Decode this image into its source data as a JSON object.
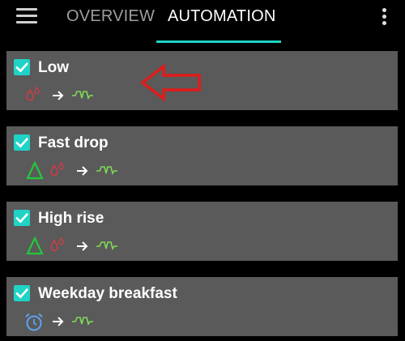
{
  "topbar": {
    "menu_icon": "hamburger-menu-icon",
    "tabs": [
      {
        "label": "OVERVIEW",
        "active": false
      },
      {
        "label": "AUTOMATION",
        "active": true
      }
    ],
    "more_icon": "more-vert-icon"
  },
  "colors": {
    "accent": "#1fd3c6",
    "card_bg": "#5a5a5a",
    "blood_drop": "#d23b48",
    "trend_triangle": "#22c83a",
    "pump_signal": "#7ed957",
    "alarm": "#5aa4f0",
    "annotation_arrow": "#e21b1b"
  },
  "automations": [
    {
      "name": "Low",
      "enabled": true,
      "condition_icons": [
        "blood-drop-icon"
      ],
      "action_icon": "pump-signal-icon"
    },
    {
      "name": "Fast drop",
      "enabled": true,
      "condition_icons": [
        "delta-triangle-icon",
        "blood-drop-icon"
      ],
      "action_icon": "pump-signal-icon"
    },
    {
      "name": "High rise",
      "enabled": true,
      "condition_icons": [
        "delta-triangle-icon",
        "blood-drop-icon"
      ],
      "action_icon": "pump-signal-icon"
    },
    {
      "name": "Weekday breakfast",
      "enabled": true,
      "condition_icons": [
        "alarm-clock-icon"
      ],
      "action_icon": "pump-signal-icon"
    }
  ],
  "annotation": {
    "icon": "red-outline-arrow-icon"
  }
}
